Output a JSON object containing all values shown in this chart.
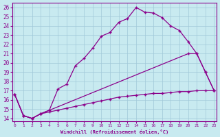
{
  "bg_color": "#c8eaf0",
  "line_color": "#8b008b",
  "grid_color": "#a0c8d8",
  "line1_x": [
    0,
    1,
    2,
    3,
    4,
    5,
    6,
    7,
    8,
    9,
    10,
    11,
    12,
    13,
    14,
    15,
    16,
    17,
    18,
    19,
    20,
    21,
    22,
    23
  ],
  "line1_y": [
    16.6,
    14.3,
    14.0,
    14.5,
    14.9,
    17.2,
    17.7,
    19.7,
    20.5,
    21.6,
    22.9,
    23.3,
    24.4,
    24.8,
    26.0,
    25.5,
    25.4,
    24.9,
    24.0,
    23.5,
    22.3,
    21.0,
    19.0,
    17.0
  ],
  "line2_x": [
    0,
    1,
    2,
    3,
    20,
    21,
    22,
    23
  ],
  "line2_y": [
    16.6,
    14.3,
    14.0,
    14.5,
    21.0,
    21.0,
    19.0,
    17.0
  ],
  "line3_x": [
    0,
    1,
    2,
    3,
    4,
    5,
    6,
    7,
    8,
    9,
    10,
    11,
    12,
    13,
    14,
    15,
    16,
    17,
    18,
    19,
    20,
    21,
    22,
    23
  ],
  "line3_y": [
    16.6,
    14.3,
    14.0,
    14.5,
    14.7,
    14.9,
    15.1,
    15.3,
    15.5,
    15.7,
    15.9,
    16.1,
    16.3,
    16.4,
    16.5,
    16.6,
    16.7,
    16.7,
    16.8,
    16.9,
    16.9,
    17.0,
    17.0,
    17.0
  ],
  "xlim": [
    -0.3,
    23.3
  ],
  "ylim": [
    13.7,
    26.5
  ],
  "xticks": [
    0,
    1,
    2,
    3,
    4,
    5,
    6,
    7,
    8,
    9,
    10,
    11,
    12,
    13,
    14,
    15,
    16,
    17,
    18,
    19,
    20,
    21,
    22,
    23
  ],
  "yticks": [
    14,
    15,
    16,
    17,
    18,
    19,
    20,
    21,
    22,
    23,
    24,
    25,
    26
  ],
  "xlabel": "Windchill (Refroidissement éolien,°C)"
}
